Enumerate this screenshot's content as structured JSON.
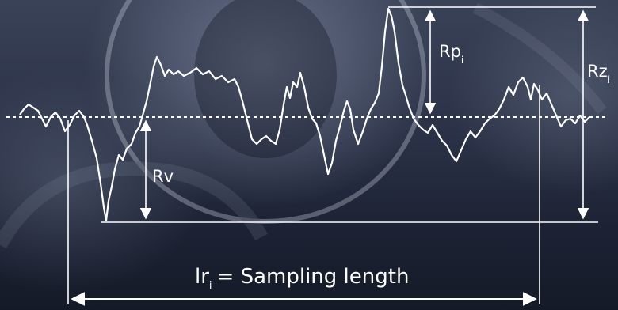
{
  "labels": {
    "rv": "Rv",
    "rp": "Rp",
    "rp_sub": "i",
    "rz": "Rz",
    "rz_sub": "i",
    "sampling_prefix": "lr",
    "sampling_sub": "i",
    "sampling_rest": "= Sampling length"
  },
  "colors": {
    "line": "#ffffff",
    "background_dark": "#151a28",
    "background_light": "#3a4258"
  },
  "icons": {
    "dimension_arrows": "arrowhead"
  }
}
